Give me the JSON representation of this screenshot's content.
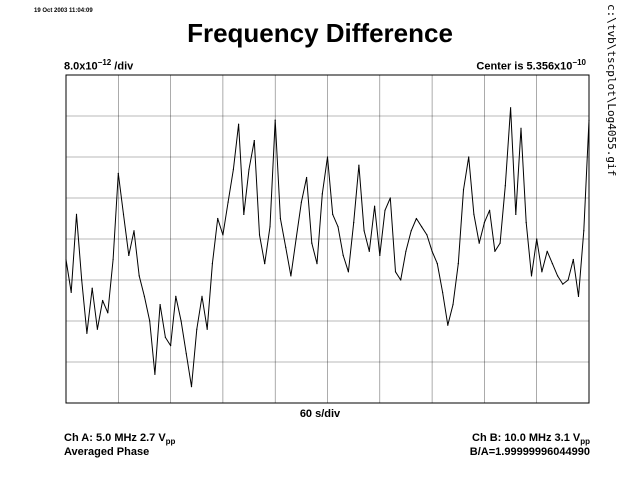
{
  "timestamp": "19 Oct 2003 11:04:09",
  "file_path": "c:\\tvb\\tscplot\\Log4055.gif",
  "chart_data": {
    "type": "line",
    "title": "Frequency Difference",
    "y_scale": {
      "mantissa": "8.0x10",
      "exponent": "−12",
      "unit": " /div"
    },
    "center": {
      "prefix": "Center is 5.356x10",
      "exponent": "−10"
    },
    "x_scale_label": "60 s/div",
    "divisions": {
      "x": 10,
      "y": 8
    },
    "grid": true,
    "xlabel": "",
    "ylabel": "",
    "x_unit": "s",
    "xlim": [
      0,
      600
    ],
    "y_unit": "divisions from center",
    "ylim": [
      -4,
      4
    ],
    "series": [
      {
        "x": [
          0,
          6,
          12,
          18,
          24,
          30,
          36,
          42,
          48,
          54,
          60,
          66,
          72,
          78,
          84,
          90,
          96,
          102,
          108,
          114,
          120,
          126,
          132,
          138,
          144,
          150,
          156,
          162,
          168,
          174,
          180,
          186,
          192,
          198,
          204,
          210,
          216,
          222,
          228,
          234,
          240,
          246,
          252,
          258,
          264,
          270,
          276,
          282,
          288,
          294,
          300,
          306,
          312,
          318,
          324,
          330,
          336,
          342,
          348,
          354,
          360,
          366,
          372,
          378,
          384,
          390,
          396,
          402,
          408,
          414,
          420,
          426,
          432,
          438,
          444,
          450,
          456,
          462,
          468,
          474,
          480,
          486,
          492,
          498,
          504,
          510,
          516,
          522,
          528,
          534,
          540,
          546,
          552,
          558,
          564,
          570,
          576,
          582,
          588,
          594,
          600
        ],
        "values": [
          -0.5,
          -1.3,
          0.6,
          -1.0,
          -2.3,
          -1.2,
          -2.2,
          -1.5,
          -1.8,
          -0.5,
          1.6,
          0.6,
          -0.4,
          0.2,
          -0.9,
          -1.4,
          -2.0,
          -3.3,
          -1.6,
          -2.4,
          -2.6,
          -1.4,
          -2.0,
          -2.8,
          -3.6,
          -2.2,
          -1.4,
          -2.2,
          -0.6,
          0.5,
          0.1,
          0.9,
          1.7,
          2.8,
          0.6,
          1.7,
          2.4,
          0.1,
          -0.6,
          0.3,
          2.9,
          0.5,
          -0.2,
          -0.9,
          0.0,
          0.9,
          1.5,
          -0.1,
          -0.6,
          1.1,
          2.0,
          0.6,
          0.3,
          -0.4,
          -0.8,
          0.4,
          1.8,
          0.2,
          -0.3,
          0.8,
          -0.4,
          0.7,
          1.0,
          -0.8,
          -1.0,
          -0.3,
          0.2,
          0.5,
          0.3,
          0.1,
          -0.3,
          -0.6,
          -1.3,
          -2.1,
          -1.6,
          -0.6,
          1.2,
          2.0,
          0.6,
          -0.1,
          0.4,
          0.7,
          -0.3,
          -0.1,
          1.3,
          3.2,
          0.6,
          2.7,
          0.4,
          -0.9,
          0.0,
          -0.8,
          -0.3,
          -0.6,
          -0.9,
          -1.1,
          -1.0,
          -0.5,
          -1.4,
          0.2,
          2.9
        ]
      }
    ]
  },
  "channel_a": {
    "text": "Ch A: 5.0 MHz 2.7 V",
    "sub": "pp"
  },
  "channel_b": {
    "text": "Ch B: 10.0 MHz 3.1 V",
    "sub": "pp"
  },
  "mode": "Averaged Phase",
  "ratio": "B/A=1.99999996044990",
  "colors": {
    "trace": "#000000",
    "grid": "#000000",
    "background": "#ffffff"
  }
}
